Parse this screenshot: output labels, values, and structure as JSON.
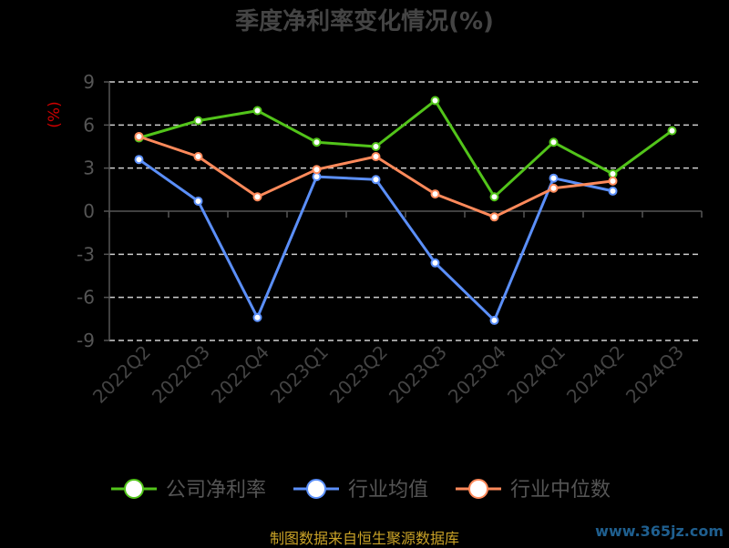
{
  "chart_data": {
    "type": "line",
    "title": "季度净利率变化情况(%)",
    "unit_label": "(%)",
    "categories": [
      "2022Q2",
      "2022Q3",
      "2022Q4",
      "2023Q1",
      "2023Q2",
      "2023Q3",
      "2023Q4",
      "2024Q1",
      "2024Q2",
      "2024Q3"
    ],
    "y_ticks": [
      9,
      6,
      3,
      0,
      -3,
      -6,
      -9
    ],
    "ylim": [
      -9,
      9
    ],
    "grid": true,
    "legend_position": "bottom",
    "series": [
      {
        "name": "公司净利率",
        "color": "#52c41a",
        "values": [
          5.1,
          6.3,
          7.0,
          4.8,
          4.5,
          7.7,
          1.0,
          4.8,
          2.6,
          5.6
        ]
      },
      {
        "name": "行业均值",
        "color": "#5b8ff9",
        "values": [
          3.6,
          0.7,
          -7.4,
          2.4,
          2.2,
          -3.6,
          -7.6,
          2.3,
          1.4,
          null
        ]
      },
      {
        "name": "行业中位数",
        "color": "#ff8a5b",
        "values": [
          5.2,
          3.8,
          1.0,
          2.9,
          3.8,
          1.2,
          -0.4,
          1.6,
          2.1,
          null
        ]
      }
    ]
  },
  "source_text": "制图数据来自恒生聚源数据库",
  "watermark_text": "www.365jz.com"
}
